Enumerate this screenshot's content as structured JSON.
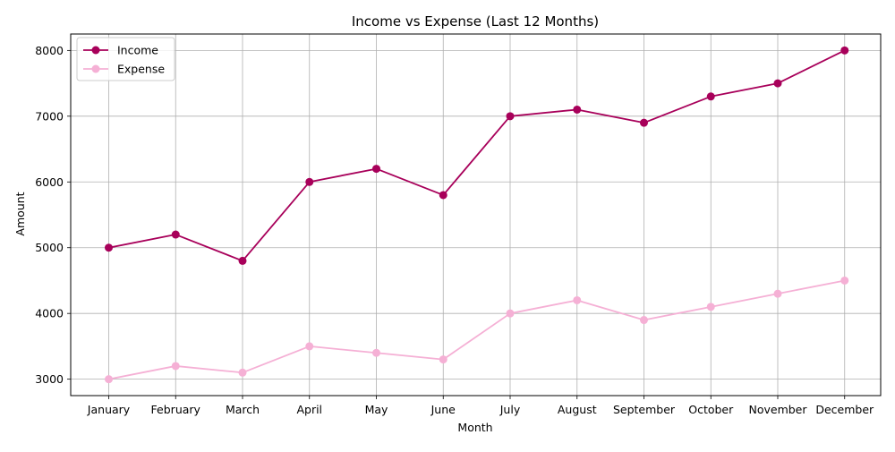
{
  "chart_data": {
    "type": "line",
    "title": "Income vs Expense (Last 12 Months)",
    "xlabel": "Month",
    "ylabel": "Amount",
    "categories": [
      "January",
      "February",
      "March",
      "April",
      "May",
      "June",
      "July",
      "August",
      "September",
      "October",
      "November",
      "December"
    ],
    "series": [
      {
        "name": "Income",
        "color": "#a8005a",
        "marker": "circle",
        "values": [
          5000,
          5200,
          4800,
          6000,
          6200,
          5800,
          7000,
          7100,
          6900,
          7300,
          7500,
          8000
        ]
      },
      {
        "name": "Expense",
        "color": "#f5b0d5",
        "marker": "circle",
        "values": [
          3000,
          3200,
          3100,
          3500,
          3400,
          3300,
          4000,
          4200,
          3900,
          4100,
          4300,
          4500
        ]
      }
    ],
    "ylim": [
      2750,
      8250
    ],
    "yticks": [
      3000,
      4000,
      5000,
      6000,
      7000,
      8000
    ],
    "grid": true,
    "legend_position": "upper-left"
  }
}
